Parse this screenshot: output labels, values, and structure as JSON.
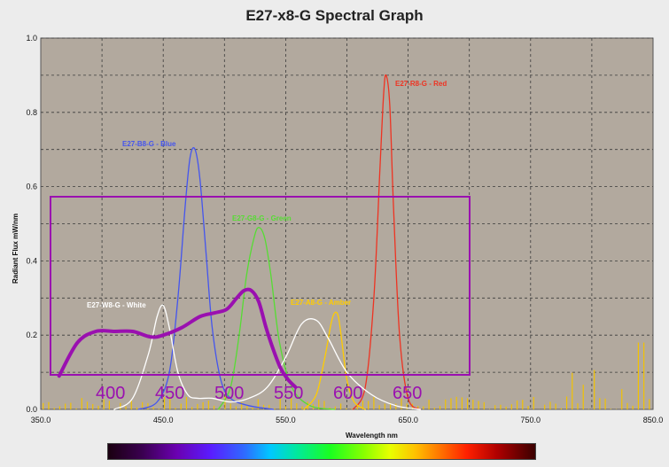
{
  "chart_data": {
    "type": "line",
    "title": "E27-x8-G Spectral Graph",
    "xlabel": "Wavelength  nm",
    "ylabel": "Radiant Flux  mW/nm",
    "xlim": [
      350,
      850
    ],
    "ylim": [
      0,
      1.0
    ],
    "x_ticks": [
      "350.0",
      "450.0",
      "550.0",
      "650.0",
      "750.0",
      "850.0"
    ],
    "y_ticks": [
      "0.0",
      "0.2",
      "0.4",
      "0.6",
      "0.8",
      "1.0"
    ],
    "grid": true,
    "series": [
      {
        "name": "E27-B8-G - Blue",
        "color": "#4455ee",
        "x": [
          430,
          445,
          455,
          462,
          468,
          472,
          476,
          480,
          485,
          490,
          497,
          505,
          520,
          540
        ],
        "y": [
          0.0,
          0.02,
          0.1,
          0.3,
          0.55,
          0.68,
          0.7,
          0.62,
          0.42,
          0.22,
          0.08,
          0.03,
          0.01,
          0.0
        ]
      },
      {
        "name": "E27-G8-G - Green",
        "color": "#55dd33",
        "x": [
          495,
          505,
          512,
          518,
          524,
          528,
          533,
          538,
          545,
          555,
          570,
          590
        ],
        "y": [
          0.0,
          0.06,
          0.2,
          0.36,
          0.46,
          0.49,
          0.46,
          0.36,
          0.18,
          0.06,
          0.01,
          0.0
        ]
      },
      {
        "name": "E27-R8-G - Red",
        "color": "#ee3322",
        "x": [
          605,
          615,
          622,
          627,
          630,
          632,
          635,
          638,
          643,
          650,
          660
        ],
        "y": [
          0.0,
          0.06,
          0.3,
          0.65,
          0.85,
          0.9,
          0.82,
          0.55,
          0.2,
          0.03,
          0.0
        ]
      },
      {
        "name": "E27-A8-G - Amber",
        "color": "#ffcc00",
        "x": [
          565,
          575,
          582,
          587,
          590,
          593,
          596,
          600,
          606,
          615
        ],
        "y": [
          0.0,
          0.04,
          0.14,
          0.23,
          0.26,
          0.25,
          0.18,
          0.08,
          0.02,
          0.0
        ]
      },
      {
        "name": "E27-W8-G - White",
        "color": "#ffffff",
        "x": [
          410,
          425,
          438,
          445,
          450,
          455,
          462,
          470,
          478,
          490,
          505,
          520,
          535,
          550,
          563,
          575,
          585,
          600,
          620,
          640,
          660
        ],
        "y": [
          0.0,
          0.03,
          0.15,
          0.25,
          0.28,
          0.22,
          0.1,
          0.04,
          0.03,
          0.03,
          0.02,
          0.03,
          0.06,
          0.14,
          0.23,
          0.24,
          0.19,
          0.1,
          0.04,
          0.01,
          0.0
        ]
      },
      {
        "name": "",
        "color": "#9a10b0",
        "x": [
          365,
          380,
          395,
          410,
          425,
          440,
          450,
          465,
          480,
          492,
          502,
          510,
          516,
          522,
          528,
          534,
          540,
          546,
          552,
          558
        ],
        "y": [
          0.09,
          0.18,
          0.21,
          0.21,
          0.21,
          0.195,
          0.2,
          0.22,
          0.25,
          0.26,
          0.27,
          0.3,
          0.32,
          0.32,
          0.29,
          0.22,
          0.16,
          0.11,
          0.08,
          0.06
        ]
      }
    ],
    "annotations": {
      "overlay_numbers": [
        "400",
        "450",
        "500",
        "550",
        "600",
        "650"
      ],
      "overlay_color": "#9a10b0"
    }
  }
}
